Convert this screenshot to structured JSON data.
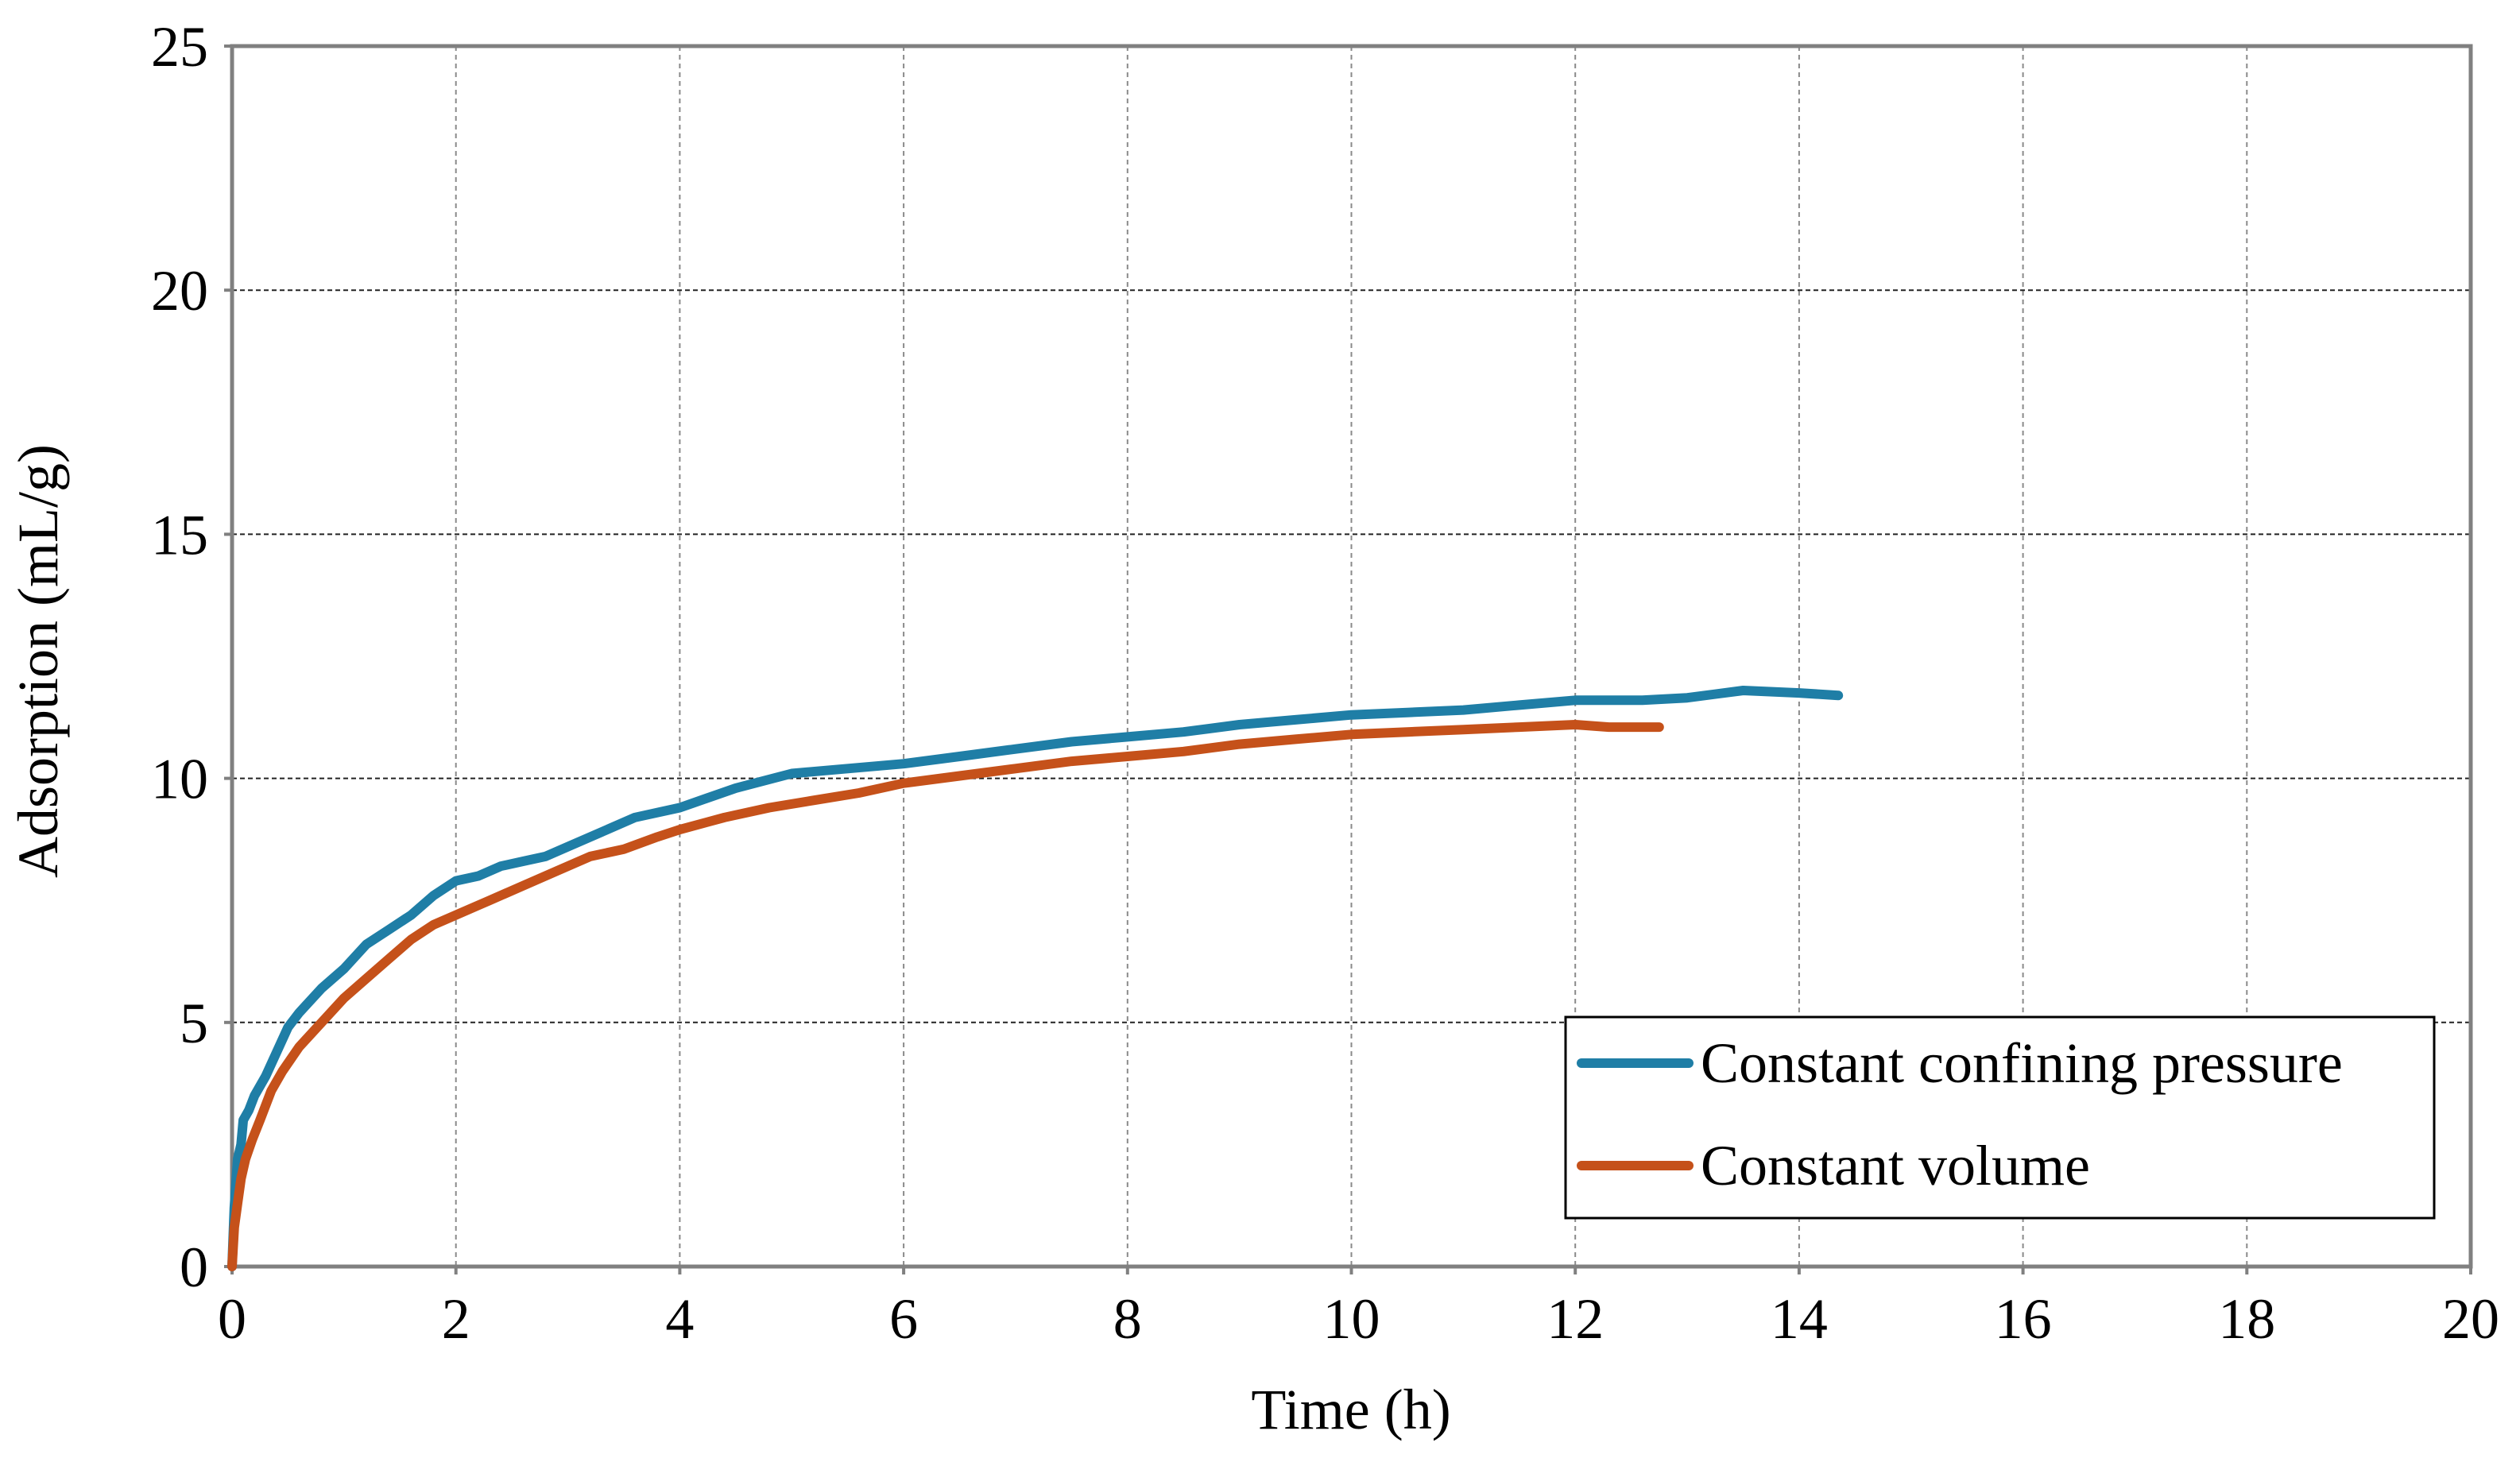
{
  "chart_data": {
    "type": "line",
    "title": "",
    "xlabel": "Time (h)",
    "ylabel": "Adsorption (mL/g)",
    "xlim": [
      0,
      20
    ],
    "ylim": [
      0,
      25
    ],
    "x_ticks": [
      0,
      2,
      4,
      6,
      8,
      10,
      12,
      14,
      16,
      18,
      20
    ],
    "y_ticks": [
      0,
      5,
      10,
      15,
      20,
      25
    ],
    "grid": true,
    "legend_position": "bottom-right",
    "series": [
      {
        "name": "Constant confining pressure",
        "color": "#1f7ea6",
        "x": [
          0,
          0.02,
          0.05,
          0.08,
          0.1,
          0.15,
          0.2,
          0.3,
          0.4,
          0.5,
          0.6,
          0.8,
          1.0,
          1.2,
          1.4,
          1.6,
          1.8,
          2.0,
          2.2,
          2.4,
          2.6,
          2.8,
          3.0,
          3.3,
          3.6,
          4.0,
          4.5,
          5.0,
          5.5,
          6.0,
          6.5,
          7.0,
          7.5,
          8.0,
          8.5,
          9.0,
          9.5,
          10.0,
          10.5,
          11.0,
          11.5,
          12.0,
          12.3,
          12.6,
          13.0,
          13.5,
          14.0,
          14.35
        ],
        "y": [
          0,
          1.2,
          2.2,
          2.5,
          3.0,
          3.2,
          3.5,
          3.9,
          4.4,
          4.9,
          5.2,
          5.7,
          6.1,
          6.6,
          6.9,
          7.2,
          7.6,
          7.9,
          8.0,
          8.2,
          8.3,
          8.4,
          8.6,
          8.9,
          9.2,
          9.4,
          9.8,
          10.1,
          10.2,
          10.3,
          10.45,
          10.6,
          10.75,
          10.85,
          10.95,
          11.1,
          11.2,
          11.3,
          11.35,
          11.4,
          11.5,
          11.6,
          11.6,
          11.6,
          11.65,
          11.8,
          11.75,
          11.7
        ]
      },
      {
        "name": "Constant volume",
        "color": "#c5511a",
        "x": [
          0,
          0.02,
          0.05,
          0.08,
          0.12,
          0.18,
          0.25,
          0.35,
          0.45,
          0.6,
          0.8,
          1.0,
          1.2,
          1.4,
          1.6,
          1.8,
          2.0,
          2.3,
          2.6,
          2.9,
          3.2,
          3.5,
          3.8,
          4.0,
          4.4,
          4.8,
          5.2,
          5.6,
          6.0,
          6.5,
          7.0,
          7.5,
          8.0,
          8.5,
          9.0,
          9.5,
          10.0,
          10.5,
          11.0,
          11.5,
          12.0,
          12.3,
          12.5,
          12.75
        ],
        "y": [
          0,
          0.8,
          1.3,
          1.8,
          2.2,
          2.6,
          3.0,
          3.6,
          4.0,
          4.5,
          5.0,
          5.5,
          5.9,
          6.3,
          6.7,
          7.0,
          7.2,
          7.5,
          7.8,
          8.1,
          8.4,
          8.55,
          8.8,
          8.95,
          9.2,
          9.4,
          9.55,
          9.7,
          9.9,
          10.05,
          10.2,
          10.35,
          10.45,
          10.55,
          10.7,
          10.8,
          10.9,
          10.95,
          11.0,
          11.05,
          11.1,
          11.05,
          11.05,
          11.05
        ]
      }
    ]
  }
}
